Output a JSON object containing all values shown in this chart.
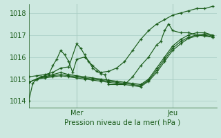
{
  "xlabel": "Pression niveau de la mer( hPa )",
  "bg_color": "#cde8e0",
  "grid_color": "#a8cec5",
  "line_color": "#1a5c1a",
  "ylim": [
    1013.7,
    1018.4
  ],
  "xlim": [
    0,
    47
  ],
  "yticks": [
    1014,
    1015,
    1016,
    1017,
    1018
  ],
  "xtick_positions": [
    12,
    36
  ],
  "xtick_labels": [
    "Mer",
    "Jeu"
  ],
  "vlines": [
    12,
    36
  ],
  "series": [
    [
      0,
      1014.0,
      1,
      1014.8,
      2,
      1015.0,
      3,
      1015.1,
      4,
      1015.15,
      5,
      1015.2,
      6,
      1015.6,
      7,
      1015.9,
      8,
      1016.3,
      9,
      1016.1,
      10,
      1015.8,
      11,
      1015.3,
      12,
      1015.9,
      14,
      1016.0,
      16,
      1015.6,
      18,
      1015.3,
      20,
      1015.35,
      22,
      1015.5,
      24,
      1015.8,
      26,
      1016.3,
      28,
      1016.8,
      30,
      1017.2,
      32,
      1017.5,
      34,
      1017.7,
      36,
      1017.9,
      38,
      1018.0,
      40,
      1018.1,
      42,
      1018.2,
      44,
      1018.2,
      46,
      1018.3
    ],
    [
      0,
      1014.85,
      2,
      1015.0,
      4,
      1015.1,
      6,
      1015.2,
      8,
      1015.3,
      10,
      1015.2,
      12,
      1015.15,
      14,
      1015.1,
      16,
      1015.05,
      18,
      1015.0,
      20,
      1014.95,
      22,
      1014.9,
      24,
      1014.85,
      26,
      1014.8,
      28,
      1014.75,
      30,
      1015.0,
      32,
      1015.5,
      34,
      1016.0,
      36,
      1016.5,
      38,
      1016.8,
      40,
      1017.0,
      42,
      1017.1,
      44,
      1017.1,
      46,
      1017.0
    ],
    [
      0,
      1014.85,
      2,
      1015.0,
      4,
      1015.1,
      6,
      1015.15,
      8,
      1015.2,
      10,
      1015.15,
      12,
      1015.1,
      14,
      1015.05,
      16,
      1015.0,
      18,
      1014.95,
      20,
      1014.9,
      22,
      1014.85,
      24,
      1014.8,
      26,
      1014.75,
      28,
      1014.7,
      30,
      1014.95,
      32,
      1015.4,
      34,
      1015.9,
      36,
      1016.4,
      38,
      1016.7,
      40,
      1016.9,
      42,
      1017.0,
      44,
      1017.05,
      46,
      1016.95
    ],
    [
      0,
      1014.85,
      2,
      1015.0,
      4,
      1015.05,
      6,
      1015.1,
      8,
      1015.15,
      10,
      1015.1,
      12,
      1015.05,
      14,
      1015.0,
      16,
      1014.95,
      18,
      1014.9,
      20,
      1014.85,
      22,
      1014.8,
      24,
      1014.75,
      26,
      1014.7,
      28,
      1014.65,
      30,
      1014.9,
      32,
      1015.3,
      34,
      1015.8,
      36,
      1016.3,
      38,
      1016.6,
      40,
      1016.85,
      42,
      1016.95,
      44,
      1017.0,
      46,
      1016.9
    ],
    [
      0,
      1015.1,
      2,
      1015.15,
      4,
      1015.2,
      6,
      1015.3,
      8,
      1015.5,
      10,
      1015.55,
      12,
      1016.6,
      13,
      1016.4,
      14,
      1016.1,
      15,
      1015.8,
      16,
      1015.5,
      17,
      1015.35,
      18,
      1015.25,
      19,
      1015.2,
      20,
      1014.75,
      22,
      1014.75,
      24,
      1014.75,
      26,
      1015.1,
      28,
      1015.6,
      30,
      1016.0,
      32,
      1016.55,
      33,
      1016.7,
      34,
      1017.2,
      35,
      1017.5,
      36,
      1017.2,
      38,
      1017.1,
      40,
      1017.1,
      42,
      1017.0,
      44,
      1016.95,
      46,
      1016.9
    ]
  ]
}
